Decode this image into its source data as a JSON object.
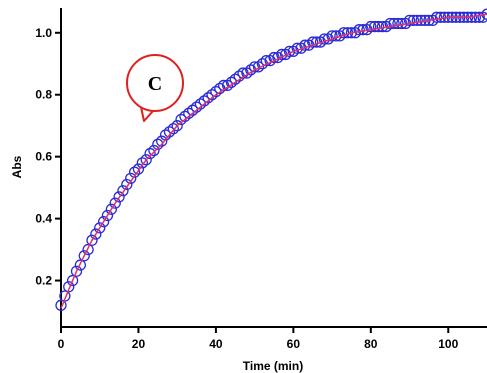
{
  "chart_data": {
    "type": "scatter",
    "xlabel": "Time (min)",
    "ylabel": "Abs",
    "xlim": [
      0,
      110
    ],
    "ylim": [
      0.05,
      1.08
    ],
    "xticks": [
      0,
      20,
      40,
      60,
      80,
      100
    ],
    "yticks": [
      0.2,
      0.4,
      0.6,
      0.8,
      1.0
    ],
    "xtick_labels": [
      "0",
      "20",
      "40",
      "60",
      "80",
      "100"
    ],
    "ytick_labels": [
      "0.2",
      "0.4",
      "0.6",
      "0.8",
      "1.0"
    ],
    "grid": false,
    "annotation": "C",
    "series": [
      {
        "kind": "markers",
        "color": "#2b2bd6",
        "x": [
          0,
          1,
          2,
          3,
          4,
          5,
          6,
          7,
          8,
          9,
          10,
          11,
          12,
          13,
          14,
          15,
          16,
          17,
          18,
          19,
          20,
          21,
          22,
          23,
          24,
          25,
          26,
          27,
          28,
          29,
          30,
          31,
          32,
          33,
          34,
          35,
          36,
          37,
          38,
          39,
          40,
          41,
          42,
          43,
          44,
          45,
          46,
          47,
          48,
          49,
          50,
          51,
          52,
          53,
          54,
          55,
          56,
          57,
          58,
          59,
          60,
          61,
          62,
          63,
          64,
          65,
          66,
          67,
          68,
          69,
          70,
          71,
          72,
          73,
          74,
          75,
          76,
          77,
          78,
          79,
          80,
          81,
          82,
          83,
          84,
          85,
          86,
          87,
          88,
          89,
          90,
          91,
          92,
          93,
          94,
          95,
          96,
          97,
          98,
          99,
          100,
          101,
          102,
          103,
          104,
          105,
          106,
          107,
          108,
          109,
          110
        ],
        "y": [
          0.12,
          0.15,
          0.18,
          0.2,
          0.23,
          0.25,
          0.28,
          0.3,
          0.33,
          0.35,
          0.37,
          0.39,
          0.41,
          0.43,
          0.45,
          0.47,
          0.49,
          0.51,
          0.53,
          0.55,
          0.56,
          0.58,
          0.59,
          0.61,
          0.62,
          0.64,
          0.65,
          0.67,
          0.68,
          0.69,
          0.7,
          0.72,
          0.73,
          0.74,
          0.75,
          0.76,
          0.77,
          0.78,
          0.79,
          0.8,
          0.81,
          0.82,
          0.83,
          0.83,
          0.84,
          0.85,
          0.86,
          0.87,
          0.87,
          0.88,
          0.89,
          0.89,
          0.9,
          0.91,
          0.91,
          0.92,
          0.92,
          0.93,
          0.93,
          0.94,
          0.94,
          0.95,
          0.95,
          0.96,
          0.96,
          0.97,
          0.97,
          0.97,
          0.98,
          0.98,
          0.99,
          0.99,
          0.99,
          1.0,
          1.0,
          1.0,
          1.0,
          1.01,
          1.01,
          1.01,
          1.02,
          1.02,
          1.02,
          1.02,
          1.02,
          1.03,
          1.03,
          1.03,
          1.03,
          1.03,
          1.04,
          1.04,
          1.04,
          1.04,
          1.04,
          1.04,
          1.04,
          1.05,
          1.05,
          1.05,
          1.05,
          1.05,
          1.05,
          1.05,
          1.05,
          1.05,
          1.05,
          1.05,
          1.05,
          1.05,
          1.06
        ]
      },
      {
        "kind": "fit-line",
        "color": "#e0306b",
        "x": [
          0,
          2,
          4,
          6,
          8,
          10,
          14,
          18,
          22,
          26,
          30,
          35,
          40,
          45,
          50,
          55,
          60,
          65,
          70,
          75,
          80,
          85,
          90,
          95,
          100,
          105,
          110
        ],
        "y": [
          0.11,
          0.17,
          0.23,
          0.28,
          0.33,
          0.37,
          0.45,
          0.52,
          0.59,
          0.64,
          0.7,
          0.75,
          0.8,
          0.84,
          0.88,
          0.91,
          0.94,
          0.96,
          0.98,
          1.0,
          1.01,
          1.02,
          1.03,
          1.04,
          1.05,
          1.05,
          1.06
        ]
      }
    ]
  }
}
